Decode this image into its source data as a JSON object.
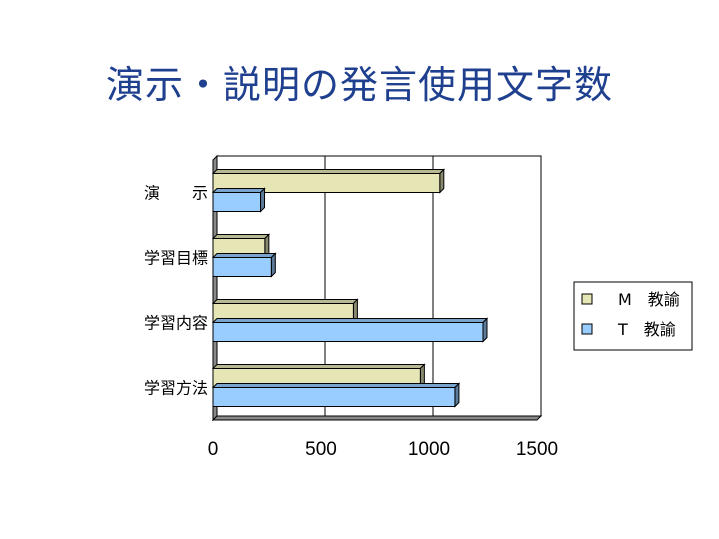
{
  "page": {
    "title": "演示・説明の発言使用文字数"
  },
  "chart_data": {
    "type": "bar",
    "orientation": "horizontal",
    "style": "3d",
    "title": "",
    "xlabel": "",
    "ylabel": "",
    "categories": [
      "演　　示",
      "学習目標",
      "学習内容",
      "学習方法"
    ],
    "series": [
      {
        "name": "M　教諭",
        "values": [
          1050,
          240,
          650,
          960
        ],
        "color": "#e5e5b5"
      },
      {
        "name": "T　教諭",
        "values": [
          220,
          270,
          1250,
          1120
        ],
        "color": "#99ccff"
      }
    ],
    "xlim": [
      0,
      1500
    ],
    "xticks": [
      "0",
      "500",
      "1000",
      "1500"
    ],
    "grid": true,
    "legend": "right"
  }
}
